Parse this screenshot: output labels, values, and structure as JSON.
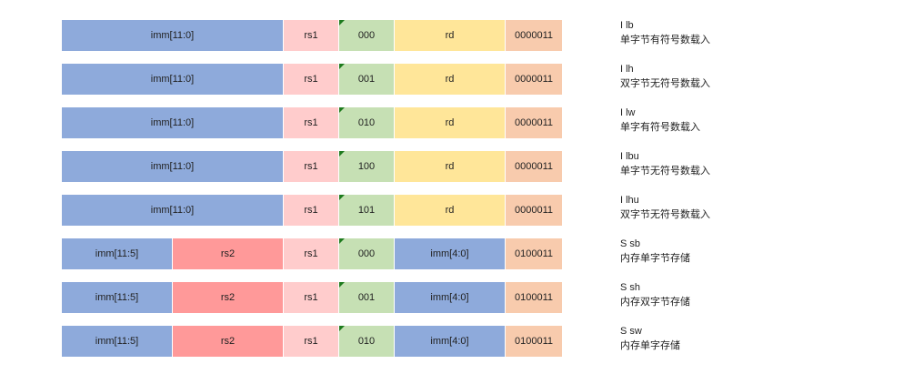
{
  "rows": [
    {
      "fields": [
        "imm[11:0]",
        "rs1",
        "000",
        "rd",
        "0000011"
      ],
      "mnemonic": "I lb",
      "description": "单字节有符号数载入"
    },
    {
      "fields": [
        "imm[11:0]",
        "rs1",
        "001",
        "rd",
        "0000011"
      ],
      "mnemonic": "I lh",
      "description": "双字节无符号数载入"
    },
    {
      "fields": [
        "imm[11:0]",
        "rs1",
        "010",
        "rd",
        "0000011"
      ],
      "mnemonic": "I lw",
      "description": "单字有符号数载入"
    },
    {
      "fields": [
        "imm[11:0]",
        "rs1",
        "100",
        "rd",
        "0000011"
      ],
      "mnemonic": "I lbu",
      "description": "单字节无符号数载入"
    },
    {
      "fields": [
        "imm[11:0]",
        "rs1",
        "101",
        "rd",
        "0000011"
      ],
      "mnemonic": "I lhu",
      "description": "双字节无符号数载入"
    },
    {
      "fields": [
        "imm[11:5]",
        "rs2",
        "rs1",
        "000",
        "imm[4:0]",
        "0100011"
      ],
      "mnemonic": "S sb",
      "description": "内存单字节存储"
    },
    {
      "fields": [
        "imm[11:5]",
        "rs2",
        "rs1",
        "001",
        "imm[4:0]",
        "0100011"
      ],
      "mnemonic": "S sh",
      "description": "内存双字节存储"
    },
    {
      "fields": [
        "imm[11:5]",
        "rs2",
        "rs1",
        "010",
        "imm[4:0]",
        "0100011"
      ],
      "mnemonic": "S sw",
      "description": "内存单字存储"
    }
  ],
  "colors": {
    "imm": "#8eaadb",
    "rs1": "#ffcccc",
    "rs2": "#ff9999",
    "funct3": "#c6e0b4",
    "rd": "#ffe699",
    "opcode": "#f8cbad",
    "comment_marker": "#1e7b1e"
  },
  "icons": {
    "comment_marker": "comment-indicator-icon"
  }
}
